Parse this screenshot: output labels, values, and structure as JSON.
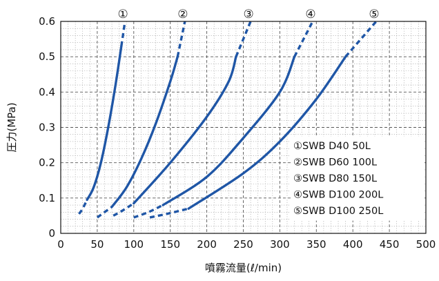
{
  "chart_data": {
    "type": "line",
    "title": "",
    "xlabel": "噴霧流量(ℓ/min)",
    "ylabel": "圧力(MPa)",
    "xlim": [
      0,
      500
    ],
    "ylim": [
      0,
      0.6
    ],
    "x_ticks": [
      "0",
      "50",
      "100",
      "150",
      "200",
      "250",
      "300",
      "350",
      "400",
      "450",
      "500"
    ],
    "y_ticks": [
      "0",
      "0.1",
      "0.2",
      "0.3",
      "0.4",
      "0.5",
      "0.6"
    ],
    "grid": "dotted",
    "legend_position": "bottom-right",
    "series": [
      {
        "marker": "①",
        "label": "①SWB D40 50L",
        "dashed_low": [
          [
            25,
            0.055
          ],
          [
            30,
            0.07
          ],
          [
            36,
            0.095
          ]
        ],
        "solid": [
          [
            36,
            0.095
          ],
          [
            45,
            0.13
          ],
          [
            55,
            0.2
          ],
          [
            65,
            0.3
          ],
          [
            75,
            0.42
          ],
          [
            83,
            0.53
          ]
        ],
        "dashed_high": [
          [
            83,
            0.53
          ],
          [
            88,
            0.6
          ]
        ]
      },
      {
        "marker": "②",
        "label": "②SWB D60 100L",
        "dashed_low": [
          [
            50,
            0.045
          ],
          [
            60,
            0.06
          ],
          [
            70,
            0.075
          ]
        ],
        "solid": [
          [
            70,
            0.075
          ],
          [
            90,
            0.13
          ],
          [
            110,
            0.21
          ],
          [
            130,
            0.31
          ],
          [
            150,
            0.43
          ],
          [
            160,
            0.5
          ]
        ],
        "dashed_high": [
          [
            160,
            0.5
          ],
          [
            170,
            0.6
          ]
        ]
      },
      {
        "marker": "③",
        "label": "③SWB D80 150L",
        "dashed_low": [
          [
            72,
            0.05
          ],
          [
            85,
            0.065
          ],
          [
            100,
            0.085
          ]
        ],
        "solid": [
          [
            100,
            0.085
          ],
          [
            150,
            0.2
          ],
          [
            200,
            0.33
          ],
          [
            230,
            0.43
          ],
          [
            240,
            0.5
          ]
        ],
        "dashed_high": [
          [
            240,
            0.5
          ],
          [
            260,
            0.6
          ]
        ]
      },
      {
        "marker": "④",
        "label": "④SWB D100 200L",
        "dashed_low": [
          [
            100,
            0.045
          ],
          [
            120,
            0.06
          ],
          [
            140,
            0.08
          ]
        ],
        "solid": [
          [
            140,
            0.08
          ],
          [
            200,
            0.16
          ],
          [
            250,
            0.27
          ],
          [
            300,
            0.4
          ],
          [
            320,
            0.5
          ]
        ],
        "dashed_high": [
          [
            320,
            0.5
          ],
          [
            345,
            0.6
          ]
        ]
      },
      {
        "marker": "⑤",
        "label": "⑤SWB D100 250L",
        "dashed_low": [
          [
            122,
            0.045
          ],
          [
            145,
            0.055
          ],
          [
            175,
            0.07
          ]
        ],
        "solid": [
          [
            175,
            0.07
          ],
          [
            250,
            0.17
          ],
          [
            300,
            0.26
          ],
          [
            350,
            0.38
          ],
          [
            390,
            0.5
          ]
        ],
        "dashed_high": [
          [
            390,
            0.5
          ],
          [
            432,
            0.6
          ]
        ]
      }
    ],
    "line_color": "#1f56a6"
  }
}
